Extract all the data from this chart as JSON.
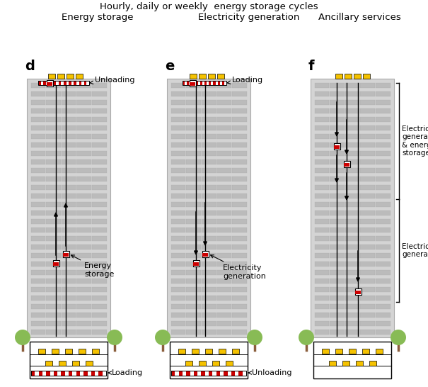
{
  "title_top": "Hourly, daily or weekly  energy storage cycles",
  "subtitle_d": "Energy storage",
  "subtitle_e": "Electricity generation",
  "subtitle_f": "Ancillary services",
  "label_d": "d",
  "label_e": "e",
  "label_f": "f",
  "bg_color": "#ffffff",
  "building_color": "#d4d4d4",
  "building_edge_color": "#aaaaaa",
  "window_color": "#bbbbbb",
  "red_stripe_color": "#cc0000",
  "yellow_block_color": "#f5c200",
  "weight_fill_color": "#cc0000",
  "weight_outline_color": "#000000",
  "arrow_color": "#000000",
  "line_color": "#000000",
  "tree_color": "#88bb55",
  "ground_color": "#cccccc",
  "text_color": "#000000"
}
